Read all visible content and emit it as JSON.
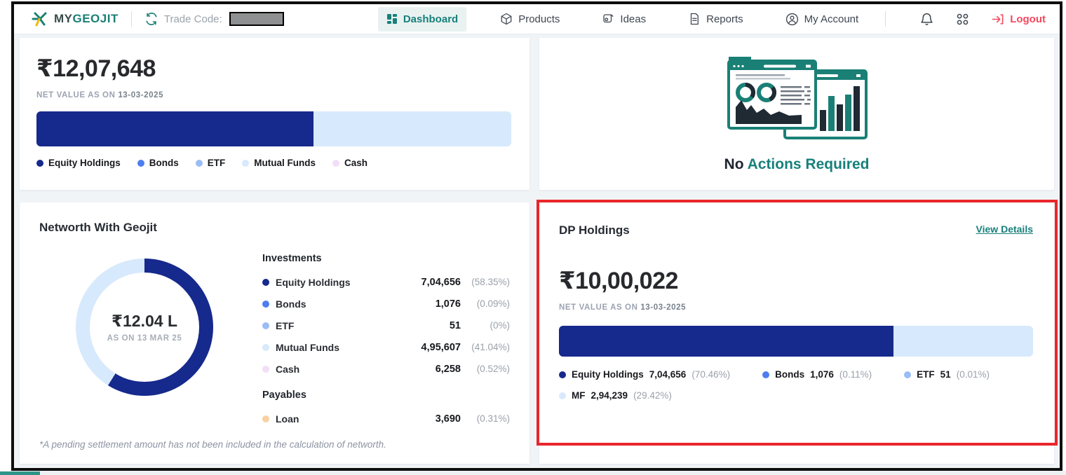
{
  "colors": {
    "teal": "#17807b",
    "navy": "#16298c",
    "blue": "#4d7ef0",
    "light_blue": "#9bbdf6",
    "pale_blue": "#d7e9fc",
    "cash_pink": "#f2def6",
    "loan_orange": "#f7d2a0",
    "logout_red": "#f4485e",
    "annotation_red": "#e8262b"
  },
  "navbar": {
    "logo_my": "MY",
    "logo_geojit": "GEOJIT",
    "trade_code_label": "Trade Code:",
    "items": [
      {
        "label": "Dashboard",
        "active": true
      },
      {
        "label": "Products",
        "active": false
      },
      {
        "label": "Ideas",
        "active": false
      },
      {
        "label": "Reports",
        "active": false
      },
      {
        "label": "My Account",
        "active": false
      }
    ],
    "logout_label": "Logout"
  },
  "net_value_card": {
    "amount": "₹12,07,648",
    "as_on_prefix": "NET VALUE AS ON ",
    "as_on_date": "13-03-2025",
    "bar_dark_pct": 58.4,
    "legend": [
      {
        "label": "Equity Holdings",
        "color": "#16298c"
      },
      {
        "label": "Bonds",
        "color": "#4d7ef0"
      },
      {
        "label": "ETF",
        "color": "#9bbdf6"
      },
      {
        "label": "Mutual Funds",
        "color": "#d7e9fc"
      },
      {
        "label": "Cash",
        "color": "#f2def6"
      }
    ]
  },
  "actions_card": {
    "title_dark": "No ",
    "title_teal": "Actions Required"
  },
  "networth_card": {
    "title": "Networth With Geojit",
    "donut": {
      "dark_pct": 58.9,
      "center_amount": "₹12.04 L",
      "center_sub": "AS ON 13 MAR 25"
    },
    "investments_header": "Investments",
    "investments": [
      {
        "label": "Equity Holdings",
        "value": "7,04,656",
        "pct": "(58.35%)",
        "color": "#16298c"
      },
      {
        "label": "Bonds",
        "value": "1,076",
        "pct": "(0.09%)",
        "color": "#4d7ef0"
      },
      {
        "label": "ETF",
        "value": "51",
        "pct": "(0%)",
        "color": "#9bbdf6"
      },
      {
        "label": "Mutual Funds",
        "value": "4,95,607",
        "pct": "(41.04%)",
        "color": "#d7e9fc"
      },
      {
        "label": "Cash",
        "value": "6,258",
        "pct": "(0.52%)",
        "color": "#f2def6"
      }
    ],
    "payables_header": "Payables",
    "payables": [
      {
        "label": "Loan",
        "value": "3,690",
        "pct": "(0.31%)",
        "color": "#f7d2a0"
      }
    ],
    "footnote": "*A pending settlement amount has not been included in the calculation of networth."
  },
  "dp_card": {
    "title": "DP Holdings",
    "view_details_label": "View Details",
    "amount": "₹10,00,022",
    "as_on_prefix": "NET VALUE AS ON ",
    "as_on_date": "13-03-2025",
    "bar_dark_pct": 70.5,
    "legend": [
      {
        "label": "Equity Holdings",
        "value": "7,04,656",
        "pct": "(70.46%)",
        "color": "#16298c"
      },
      {
        "label": "Bonds",
        "value": "1,076",
        "pct": "(0.11%)",
        "color": "#4d7ef0"
      },
      {
        "label": "ETF",
        "value": "51",
        "pct": "(0.01%)",
        "color": "#9bbdf6"
      },
      {
        "label": "MF",
        "value": "2,94,239",
        "pct": "(29.42%)",
        "color": "#d7e9fc"
      }
    ]
  },
  "chart_data": [
    {
      "type": "bar",
      "title": "Net value allocation ₹12,07,648",
      "categories": [
        "Equity Holdings",
        "Bonds",
        "ETF",
        "Mutual Funds",
        "Cash"
      ],
      "values": [
        704656,
        1076,
        51,
        495607,
        6258
      ]
    },
    {
      "type": "pie",
      "title": "Networth With Geojit ₹12.04 L",
      "categories": [
        "Equity Holdings",
        "Bonds",
        "ETF",
        "Mutual Funds",
        "Cash",
        "Loan"
      ],
      "values": [
        58.35,
        0.09,
        0,
        41.04,
        0.52,
        0.31
      ]
    },
    {
      "type": "bar",
      "title": "DP Holdings ₹10,00,022",
      "categories": [
        "Equity Holdings",
        "Bonds",
        "ETF",
        "MF"
      ],
      "values": [
        704656,
        1076,
        51,
        294239
      ]
    }
  ]
}
